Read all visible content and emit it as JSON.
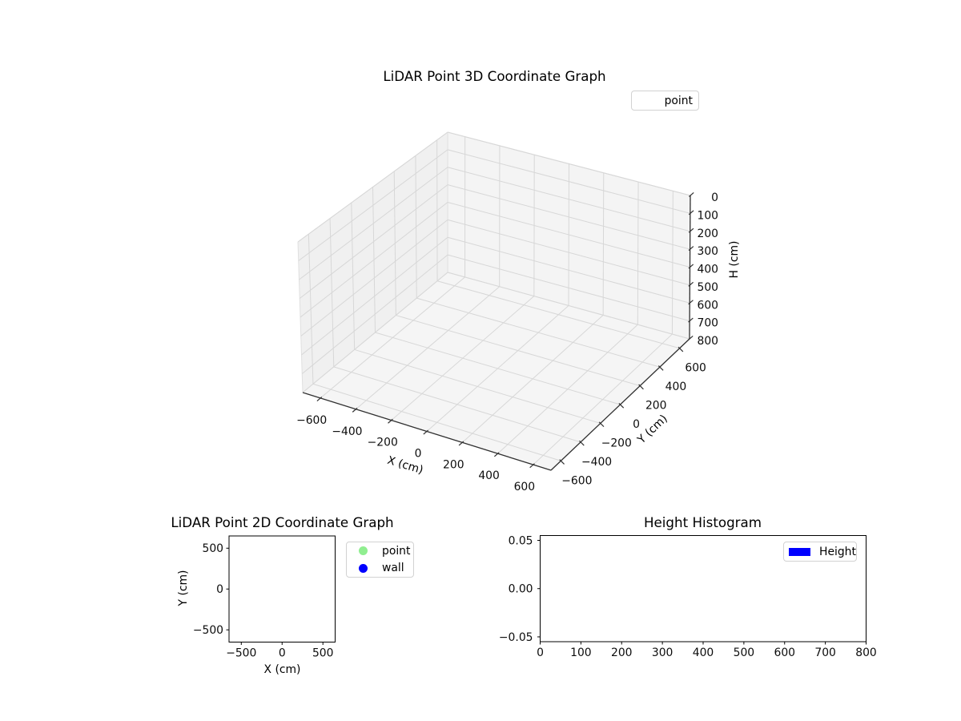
{
  "figure": {
    "background": "#ffffff",
    "text_color": "#000000"
  },
  "chart_data": [
    {
      "type": "scatter",
      "projection": "3d",
      "title": "LiDAR Point 3D Coordinate Graph",
      "xlabel": "X (cm)",
      "ylabel": "Y (cm)",
      "zlabel": "H (cm)",
      "xlim": [
        -700,
        700
      ],
      "ylim": [
        -700,
        700
      ],
      "zlim": [
        0,
        800
      ],
      "z_axis_inverted": true,
      "grid": true,
      "xticks": [
        -600,
        -400,
        -200,
        0,
        200,
        400,
        600
      ],
      "xtick_labels": [
        "−600",
        "−400",
        "−200",
        "0",
        "200",
        "400",
        "600"
      ],
      "yticks": [
        -600,
        -400,
        -200,
        0,
        200,
        400,
        600
      ],
      "ytick_labels": [
        "−600",
        "−400",
        "−200",
        "0",
        "200",
        "400",
        "600"
      ],
      "zticks": [
        0,
        100,
        200,
        300,
        400,
        500,
        600,
        700,
        800
      ],
      "ztick_labels": [
        "0",
        "100",
        "200",
        "300",
        "400",
        "500",
        "600",
        "700",
        "800"
      ],
      "legend": {
        "position": "upper right",
        "entries": [
          {
            "label": "point",
            "marker": "none"
          }
        ]
      },
      "series": [
        {
          "name": "point",
          "points": []
        }
      ],
      "colors": {
        "pane_left": "#f0f0f0",
        "pane_right": "#f4f4f4",
        "pane_floor": "#f5f5f5",
        "grid": "#d7d7d7",
        "pane_edge": "#e0e0e0",
        "axis_line": "#303030"
      }
    },
    {
      "type": "scatter",
      "title": "LiDAR Point 2D Coordinate Graph",
      "xlabel": "X (cm)",
      "ylabel": "Y (cm)",
      "xlim": [
        -650,
        650
      ],
      "ylim": [
        -650,
        650
      ],
      "grid": false,
      "xticks": [
        -500,
        0,
        500
      ],
      "xtick_labels": [
        "−500",
        "0",
        "500"
      ],
      "yticks": [
        500,
        0,
        -500
      ],
      "ytick_labels": [
        "500",
        "0",
        "−500"
      ],
      "legend": {
        "position": "outside right",
        "entries": [
          {
            "label": "point",
            "marker": "circle",
            "color": "#90ee90"
          },
          {
            "label": "wall",
            "marker": "circle",
            "color": "#0000ff"
          }
        ]
      },
      "series": [
        {
          "name": "point",
          "points": []
        },
        {
          "name": "wall",
          "points": []
        }
      ]
    },
    {
      "type": "bar",
      "title": "Height Histogram",
      "xlabel": "",
      "ylabel": "",
      "xlim": [
        0,
        800
      ],
      "ylim": [
        -0.055,
        0.055
      ],
      "grid": false,
      "xticks": [
        0,
        100,
        200,
        300,
        400,
        500,
        600,
        700,
        800
      ],
      "xtick_labels": [
        "0",
        "100",
        "200",
        "300",
        "400",
        "500",
        "600",
        "700",
        "800"
      ],
      "yticks": [
        0.05,
        0.0,
        -0.05
      ],
      "ytick_labels": [
        "0.05",
        "0.00",
        "−0.05"
      ],
      "legend": {
        "position": "upper right",
        "entries": [
          {
            "label": "Height",
            "marker": "rect",
            "color": "#0000ff"
          }
        ]
      },
      "values": []
    }
  ]
}
